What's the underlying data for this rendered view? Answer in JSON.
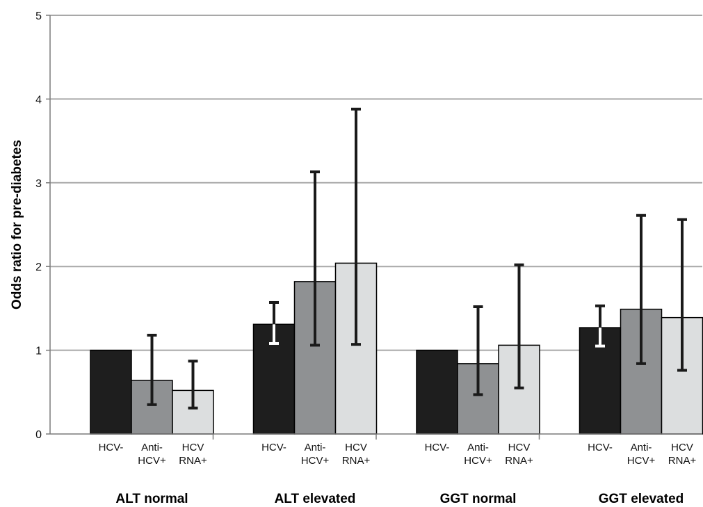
{
  "chart_data": {
    "type": "bar",
    "title": "",
    "ylabel": "Odds ratio for  pre-diabetes",
    "ylim": [
      0,
      5
    ],
    "yticks": [
      0,
      1,
      2,
      3,
      4,
      5
    ],
    "grid": true,
    "groups": [
      {
        "label": "ALT normal",
        "bars": [
          {
            "label": [
              "HCV-"
            ],
            "value": 1.0,
            "ci": [
              1.0,
              1.0
            ],
            "color": "#1e1e1e"
          },
          {
            "label": [
              "Anti-",
              "HCV+"
            ],
            "value": 0.64,
            "ci": [
              0.35,
              1.18
            ],
            "color": "#8f9193"
          },
          {
            "label": [
              "HCV",
              "RNA+"
            ],
            "value": 0.52,
            "ci": [
              0.31,
              0.87
            ],
            "color": "#dcdedf"
          }
        ]
      },
      {
        "label": "ALT elevated",
        "bars": [
          {
            "label": [
              "HCV-"
            ],
            "value": 1.31,
            "ci": [
              1.08,
              1.57
            ],
            "color": "#1e1e1e"
          },
          {
            "label": [
              "Anti-",
              "HCV+"
            ],
            "value": 1.82,
            "ci": [
              1.06,
              3.13
            ],
            "color": "#8f9193"
          },
          {
            "label": [
              "HCV",
              "RNA+"
            ],
            "value": 2.04,
            "ci": [
              1.07,
              3.88
            ],
            "color": "#dcdedf"
          }
        ]
      },
      {
        "label": "GGT normal",
        "bars": [
          {
            "label": [
              "HCV-"
            ],
            "value": 1.0,
            "ci": [
              1.0,
              1.0
            ],
            "color": "#1e1e1e"
          },
          {
            "label": [
              "Anti-",
              "HCV+"
            ],
            "value": 0.84,
            "ci": [
              0.47,
              1.52
            ],
            "color": "#8f9193"
          },
          {
            "label": [
              "HCV",
              "RNA+"
            ],
            "value": 1.06,
            "ci": [
              0.55,
              2.02
            ],
            "color": "#dcdedf"
          }
        ]
      },
      {
        "label": "GGT elevated",
        "bars": [
          {
            "label": [
              "HCV-"
            ],
            "value": 1.27,
            "ci": [
              1.05,
              1.53
            ],
            "color": "#1e1e1e"
          },
          {
            "label": [
              "Anti-",
              "HCV+"
            ],
            "value": 1.49,
            "ci": [
              0.84,
              2.61
            ],
            "color": "#8f9193"
          },
          {
            "label": [
              "HCV",
              "RNA+"
            ],
            "value": 1.39,
            "ci": [
              0.76,
              2.56
            ],
            "color": "#dcdedf"
          }
        ]
      }
    ],
    "colors": {
      "gridline": "#a8a8a8",
      "axis": "#7a7a7a",
      "bar_border": "#000000",
      "errorbar_dark": "#1a1a1a",
      "errorbar_light": "#ffffff"
    }
  }
}
